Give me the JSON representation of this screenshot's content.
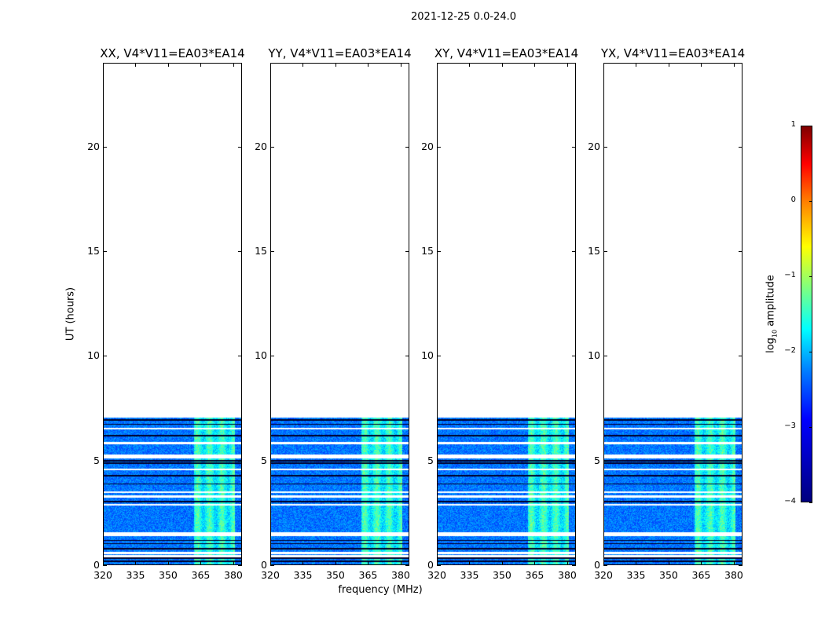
{
  "chart_data": {
    "type": "heatmap",
    "title": "2021-12-25 0.0-24.0",
    "xlabel": "frequency (MHz)",
    "ylabel": "UT (hours)",
    "xlim": [
      320,
      384
    ],
    "ylim": [
      0,
      24
    ],
    "x_ticks": [
      "320",
      "335",
      "350",
      "365",
      "380"
    ],
    "y_ticks": [
      "0",
      "5",
      "10",
      "15",
      "20"
    ],
    "data_extent_hours": [
      0,
      7.1
    ],
    "bright_band_mhz": [
      362,
      381
    ],
    "flagged_white_rows_hours": [
      0.45,
      0.6,
      1.5,
      2.9,
      3.3,
      3.5,
      4.6,
      5.2,
      5.85,
      6.55
    ],
    "flagged_black_rows_hours": [
      0.2,
      0.35,
      0.8,
      1.05,
      1.2,
      3.05,
      3.9,
      4.3,
      4.9,
      5.0,
      6.2,
      6.75,
      6.95
    ],
    "panels": [
      {
        "title": "XX, V4*V11=EA03*EA14"
      },
      {
        "title": "YY, V4*V11=EA03*EA14"
      },
      {
        "title": "XY, V4*V11=EA03*EA14"
      },
      {
        "title": "YX, V4*V11=EA03*EA14"
      }
    ],
    "colorbar": {
      "label_prefix": "log",
      "label_sub": "10",
      "label_suffix": " amplitude",
      "range": [
        -4,
        1
      ],
      "ticks": [
        "1",
        "0",
        "−1",
        "−2",
        "−3",
        "−4"
      ],
      "colormap": "jet"
    }
  }
}
